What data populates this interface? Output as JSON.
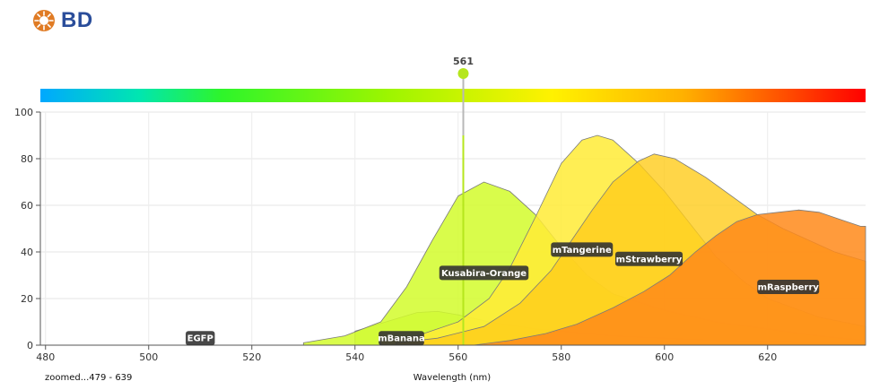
{
  "logo": {
    "text": "BD",
    "icon": "bd-sun-icon",
    "color": "#2a4d9a",
    "icon_color": "#e07b24"
  },
  "chart_data": {
    "type": "area",
    "xlabel": "Wavelength (nm)",
    "ylabel": "",
    "zoom_label": "zoomed...479 - 639",
    "xlim": [
      479,
      639
    ],
    "ylim": [
      0,
      100
    ],
    "xticks": [
      480,
      500,
      520,
      540,
      560,
      580,
      600,
      620
    ],
    "yticks": [
      0,
      20,
      40,
      60,
      80,
      100
    ],
    "grid": true,
    "laser": {
      "wavelength": 561,
      "label": "561",
      "color": "#b5e61d"
    },
    "spectrum_bar": {
      "from": 479,
      "to": 639
    },
    "series": [
      {
        "name": "EGFP",
        "color": "#a5d65a",
        "opacity": 0.5,
        "points": [
          [
            479,
            0
          ],
          [
            639,
            0
          ]
        ],
        "label_at": [
          510,
          3
        ]
      },
      {
        "name": "mBanana",
        "color": "#b8ee3a",
        "opacity": 0.6,
        "points": [
          [
            540,
            0
          ],
          [
            540,
            6
          ],
          [
            546,
            10
          ],
          [
            552,
            14
          ],
          [
            556,
            14.5
          ],
          [
            560,
            13
          ],
          [
            566,
            10
          ],
          [
            575,
            7
          ],
          [
            590,
            4
          ],
          [
            610,
            2
          ],
          [
            639,
            1
          ]
        ],
        "label_at": [
          549,
          3
        ]
      },
      {
        "name": "Kusabira-Orange",
        "color": "#d2fb2c",
        "opacity": 0.85,
        "points": [
          [
            530,
            0
          ],
          [
            530,
            1
          ],
          [
            538,
            4
          ],
          [
            545,
            10
          ],
          [
            550,
            25
          ],
          [
            555,
            45
          ],
          [
            560,
            64
          ],
          [
            565,
            70
          ],
          [
            570,
            66
          ],
          [
            575,
            56
          ],
          [
            580,
            42
          ],
          [
            585,
            30
          ],
          [
            590,
            22
          ],
          [
            600,
            15
          ],
          [
            610,
            10
          ],
          [
            620,
            7
          ],
          [
            630,
            4
          ],
          [
            639,
            2
          ]
        ],
        "label_at": [
          565,
          31
        ]
      },
      {
        "name": "mTangerine",
        "color": "#ffeb36",
        "opacity": 0.85,
        "points": [
          [
            545,
            0
          ],
          [
            545,
            2
          ],
          [
            552,
            4
          ],
          [
            560,
            10
          ],
          [
            566,
            20
          ],
          [
            570,
            33
          ],
          [
            575,
            55
          ],
          [
            580,
            78
          ],
          [
            584,
            88
          ],
          [
            587,
            90
          ],
          [
            590,
            88
          ],
          [
            595,
            78
          ],
          [
            600,
            66
          ],
          [
            605,
            52
          ],
          [
            610,
            38
          ],
          [
            615,
            28
          ],
          [
            620,
            20
          ],
          [
            630,
            12
          ],
          [
            639,
            8
          ]
        ],
        "label_at": [
          584,
          41
        ]
      },
      {
        "name": "mStrawberry",
        "color": "#ffcc1a",
        "opacity": 0.8,
        "points": [
          [
            548,
            0
          ],
          [
            548,
            1
          ],
          [
            556,
            3
          ],
          [
            565,
            8
          ],
          [
            572,
            18
          ],
          [
            578,
            32
          ],
          [
            582,
            45
          ],
          [
            586,
            58
          ],
          [
            590,
            70
          ],
          [
            595,
            79
          ],
          [
            598,
            82
          ],
          [
            602,
            80
          ],
          [
            608,
            72
          ],
          [
            613,
            64
          ],
          [
            618,
            56
          ],
          [
            623,
            50
          ],
          [
            628,
            45
          ],
          [
            633,
            40
          ],
          [
            639,
            36
          ]
        ],
        "label_at": [
          597,
          37
        ]
      },
      {
        "name": "mRaspberry",
        "color": "#ff8a1a",
        "opacity": 0.85,
        "points": [
          [
            563,
            0
          ],
          [
            570,
            2
          ],
          [
            577,
            5
          ],
          [
            583,
            9
          ],
          [
            590,
            16
          ],
          [
            596,
            23
          ],
          [
            601,
            30
          ],
          [
            606,
            40
          ],
          [
            610,
            47
          ],
          [
            614,
            53
          ],
          [
            618,
            56
          ],
          [
            622,
            57
          ],
          [
            626,
            58
          ],
          [
            630,
            57
          ],
          [
            634,
            54
          ],
          [
            638,
            51
          ],
          [
            639,
            51
          ]
        ],
        "label_at": [
          624,
          25
        ]
      }
    ]
  }
}
